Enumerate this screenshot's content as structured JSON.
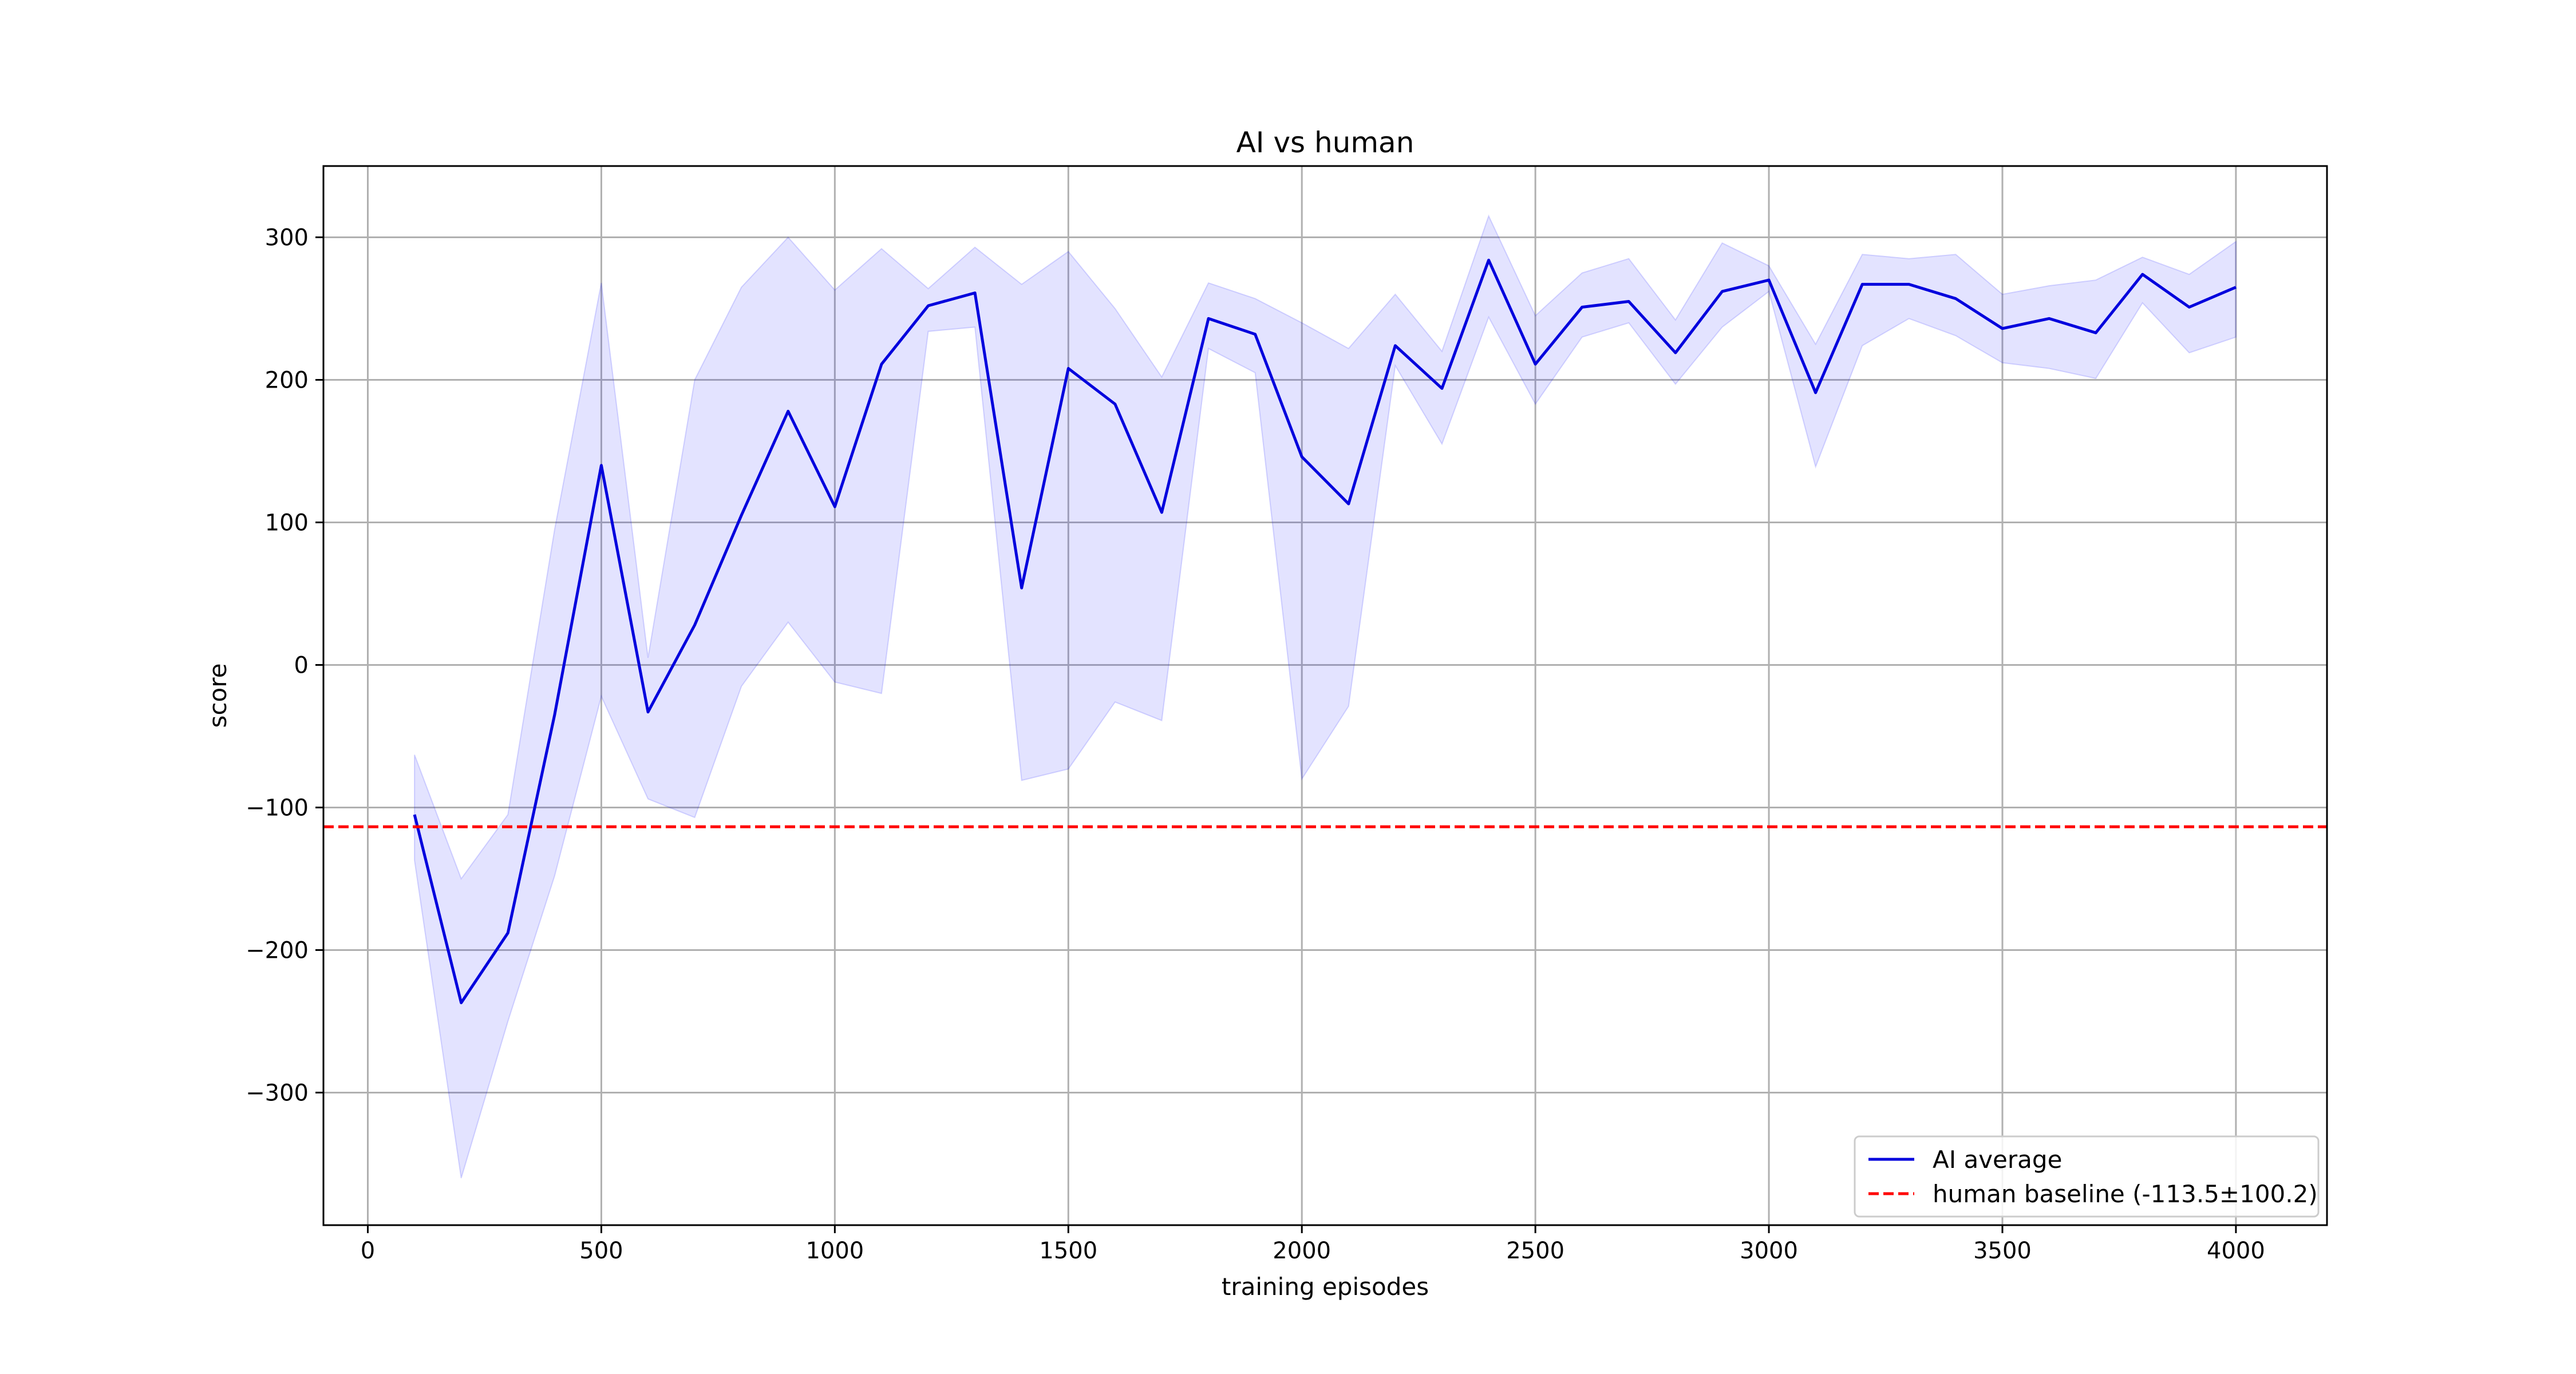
{
  "chart_data": {
    "type": "line",
    "title": "AI vs human",
    "xlabel": "training episodes",
    "ylabel": "score",
    "xlim": [
      -95,
      4195
    ],
    "ylim": [
      -393,
      350
    ],
    "xticks": [
      0,
      500,
      1000,
      1500,
      2000,
      2500,
      3000,
      3500,
      4000
    ],
    "yticks": [
      -300,
      -200,
      -100,
      0,
      100,
      200,
      300
    ],
    "grid": true,
    "legend_position": "lower-right",
    "x": [
      100,
      200,
      300,
      400,
      500,
      600,
      700,
      800,
      900,
      1000,
      1100,
      1200,
      1300,
      1400,
      1500,
      1600,
      1700,
      1800,
      1900,
      2000,
      2100,
      2200,
      2300,
      2400,
      2500,
      2600,
      2700,
      2800,
      2900,
      3000,
      3100,
      3200,
      3300,
      3400,
      3500,
      3600,
      3700,
      3800,
      3900,
      4000
    ],
    "series": [
      {
        "name": "AI average",
        "color": "#0000dd",
        "values": [
          -105,
          -237,
          -188,
          -35,
          140,
          -33,
          28,
          105,
          178,
          111,
          211,
          252,
          261,
          54,
          208,
          183,
          107,
          243,
          232,
          146,
          113,
          224,
          194,
          284,
          211,
          251,
          255,
          219,
          262,
          270,
          191,
          267,
          267,
          257,
          236,
          243,
          233,
          274,
          251,
          265
        ],
        "band_upper": [
          -63,
          -150,
          -105,
          95,
          268,
          5,
          200,
          265,
          300,
          263,
          292,
          264,
          293,
          267,
          290,
          250,
          202,
          268,
          257,
          240,
          222,
          260,
          220,
          315,
          245,
          275,
          285,
          242,
          296,
          280,
          225,
          288,
          285,
          288,
          260,
          266,
          270,
          286,
          274,
          297
        ],
        "band_lower": [
          -137,
          -360,
          -250,
          -148,
          -22,
          -94,
          -107,
          -15,
          30,
          -12,
          -20,
          234,
          237,
          -81,
          -73,
          -26,
          -39,
          222,
          205,
          -80,
          -29,
          210,
          155,
          244,
          183,
          230,
          240,
          197,
          237,
          262,
          139,
          224,
          243,
          231,
          212,
          208,
          201,
          254,
          219,
          230
        ],
        "band_color": "#0000ff",
        "band_opacity": 0.11
      },
      {
        "name": "human baseline (-113.5±100.2)",
        "color": "#ff0000",
        "style": "dashed",
        "value": -113.5
      }
    ]
  }
}
